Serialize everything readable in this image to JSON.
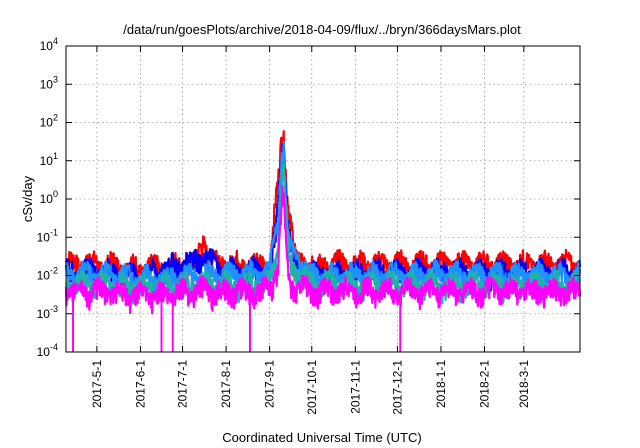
{
  "chart_data": {
    "type": "area",
    "title": "/data/run/goesPlots/archive/2018-04-09/flux/../bryn/366daysMars.plot",
    "xlabel": "Coordinated Universal Time (UTC)",
    "ylabel": "cSv/day",
    "yscale": "log",
    "ylim": [
      0.0001,
      10000
    ],
    "y_ticks": [
      {
        "value": 0.0001,
        "base": "10",
        "exp": "-4"
      },
      {
        "value": 0.001,
        "base": "10",
        "exp": "-3"
      },
      {
        "value": 0.01,
        "base": "10",
        "exp": "-2"
      },
      {
        "value": 0.1,
        "base": "10",
        "exp": "-1"
      },
      {
        "value": 1,
        "base": "10",
        "exp": "0"
      },
      {
        "value": 10,
        "base": "10",
        "exp": "1"
      },
      {
        "value": 100,
        "base": "10",
        "exp": "2"
      },
      {
        "value": 1000,
        "base": "10",
        "exp": "3"
      },
      {
        "value": 10000,
        "base": "10",
        "exp": "4"
      }
    ],
    "xlim": [
      "2017-04-09",
      "2018-04-10"
    ],
    "x_ticks": [
      "2017-5-1",
      "2017-6-1",
      "2017-7-1",
      "2017-8-1",
      "2017-9-1",
      "2017-10-1",
      "2017-11-1",
      "2017-12-1",
      "2018-1-1",
      "2018-2-1",
      "2018-3-1"
    ],
    "x_tick_dates": [
      "2017-05-01",
      "2017-06-01",
      "2017-07-01",
      "2017-08-01",
      "2017-09-01",
      "2017-10-01",
      "2017-11-01",
      "2017-12-01",
      "2018-01-01",
      "2018-02-01",
      "2018-03-01"
    ],
    "grid": true,
    "legend": "none",
    "series": [
      {
        "color": "#ff0000",
        "x": [
          "2017-04-09",
          "2017-05-01",
          "2017-06-01",
          "2017-07-10",
          "2017-07-16",
          "2017-07-20",
          "2017-08-01",
          "2017-09-01",
          "2017-09-05",
          "2017-09-07",
          "2017-09-10",
          "2017-09-11",
          "2017-09-13",
          "2017-09-15",
          "2017-09-20",
          "2017-10-01",
          "2017-11-01",
          "2017-12-01",
          "2018-01-01",
          "2018-02-01",
          "2018-03-01",
          "2018-04-09"
        ],
        "values": [
          0.02,
          0.02,
          0.015,
          0.02,
          0.1,
          0.03,
          0.02,
          0.02,
          0.6,
          2,
          60,
          40,
          3,
          0.5,
          0.02,
          0.02,
          0.02,
          0.02,
          0.02,
          0.02,
          0.02,
          0.02
        ]
      },
      {
        "color": "#0000ff",
        "x": [
          "2017-04-09",
          "2017-05-01",
          "2017-06-01",
          "2017-07-16",
          "2017-08-01",
          "2017-09-01",
          "2017-09-05",
          "2017-09-07",
          "2017-09-10",
          "2017-09-11",
          "2017-09-13",
          "2017-09-15",
          "2017-09-20",
          "2017-10-01",
          "2017-11-01",
          "2017-12-01",
          "2018-01-01",
          "2018-02-01",
          "2018-03-01",
          "2018-04-09"
        ],
        "values": [
          0.012,
          0.013,
          0.01,
          0.03,
          0.013,
          0.013,
          0.1,
          0.5,
          30,
          30,
          1,
          0.1,
          0.012,
          0.012,
          0.012,
          0.012,
          0.013,
          0.012,
          0.012,
          0.012
        ]
      },
      {
        "color": "#1e90ff",
        "x": [
          "2017-04-09",
          "2017-05-01",
          "2017-06-01",
          "2017-08-01",
          "2017-09-01",
          "2017-09-07",
          "2017-09-10",
          "2017-09-11",
          "2017-09-13",
          "2017-09-15",
          "2017-10-01",
          "2017-11-01",
          "2017-12-01",
          "2018-01-01",
          "2018-02-01",
          "2018-03-01",
          "2018-04-09"
        ],
        "values": [
          0.01,
          0.011,
          0.008,
          0.011,
          0.011,
          0.3,
          25,
          25,
          0.5,
          0.05,
          0.01,
          0.01,
          0.01,
          0.011,
          0.01,
          0.01,
          0.01
        ]
      },
      {
        "color": "#20b2aa",
        "x": [
          "2017-04-09",
          "2017-05-01",
          "2017-06-01",
          "2017-08-01",
          "2017-09-01",
          "2017-09-07",
          "2017-09-10",
          "2017-09-11",
          "2017-09-13",
          "2017-09-15",
          "2017-10-01",
          "2018-01-01",
          "2018-04-09"
        ],
        "values": [
          0.006,
          0.006,
          0.005,
          0.006,
          0.006,
          0.05,
          5,
          5,
          0.2,
          0.02,
          0.006,
          0.006,
          0.006
        ]
      },
      {
        "color": "#ff00ff",
        "x": [
          "2017-04-09",
          "2017-05-01",
          "2017-06-01",
          "2017-06-15",
          "2017-07-01",
          "2017-08-01",
          "2017-09-01",
          "2017-09-07",
          "2017-09-10",
          "2017-09-11",
          "2017-09-13",
          "2017-09-15",
          "2017-10-01",
          "2017-11-01",
          "2017-12-01",
          "2018-01-01",
          "2018-02-01",
          "2018-03-01",
          "2018-04-09"
        ],
        "values": [
          0.004,
          0.004,
          0.003,
          0.003,
          0.004,
          0.004,
          0.004,
          0.02,
          1,
          1,
          0.05,
          0.006,
          0.004,
          0.004,
          0.004,
          0.004,
          0.004,
          0.004,
          0.004
        ]
      }
    ]
  }
}
